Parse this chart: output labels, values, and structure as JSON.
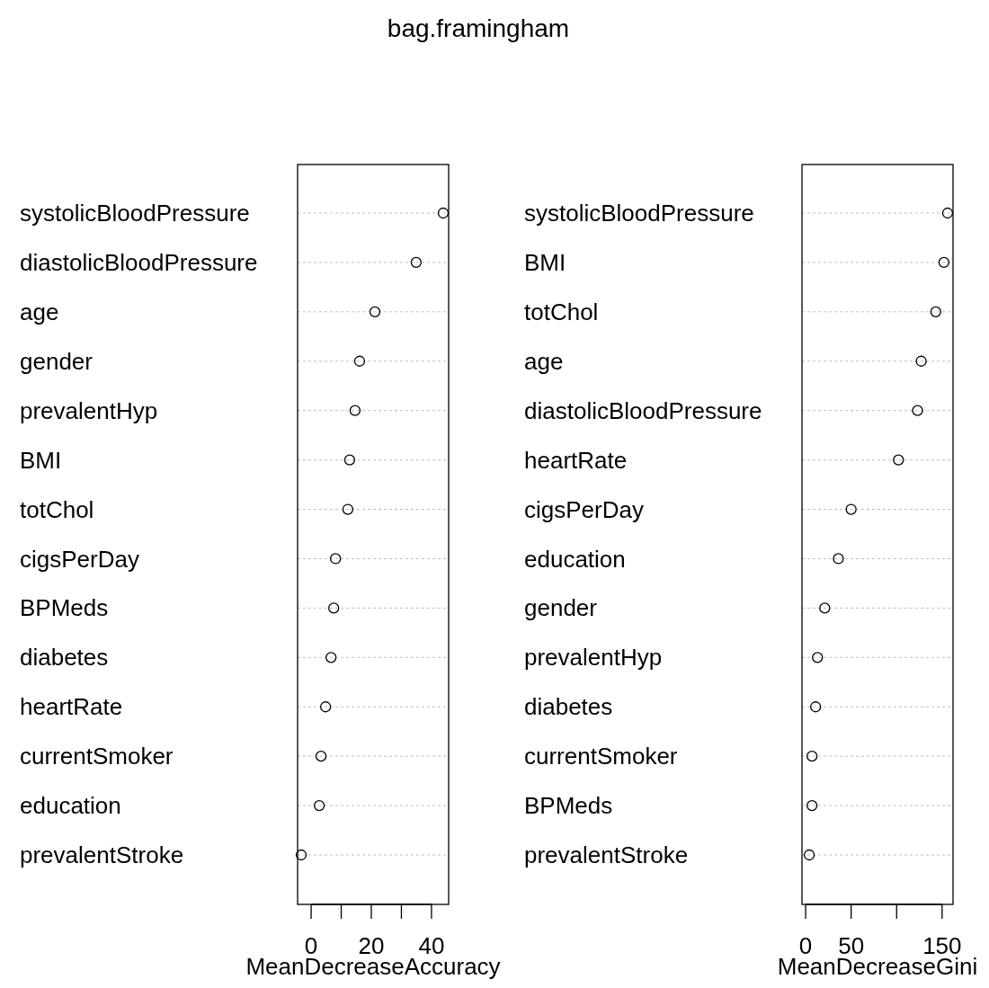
{
  "chart_data": [
    {
      "type": "scatter",
      "orientation": "horizontal",
      "title": "bag.framingham",
      "xlabel": "MeanDecreaseAccuracy",
      "categories": [
        "systolicBloodPressure",
        "diastolicBloodPressure",
        "age",
        "gender",
        "prevalentHyp",
        "BMI",
        "totChol",
        "cigsPerDay",
        "BPMeds",
        "diabetes",
        "heartRate",
        "currentSmoker",
        "education",
        "prevalentStroke"
      ],
      "series": [
        {
          "color": "#000000",
          "values": [
            43.9,
            34.9,
            21.2,
            16.1,
            14.6,
            12.8,
            12.2,
            8.1,
            7.5,
            6.6,
            4.8,
            3.3,
            2.7,
            -3.3
          ]
        }
      ],
      "xlim": [
        -4.5,
        45.7
      ],
      "xticks": [
        0,
        {
          "value": 10,
          "label": null
        },
        20,
        {
          "value": 30,
          "label": null
        },
        40
      ],
      "grid": "y",
      "marker": "circle"
    },
    {
      "type": "scatter",
      "orientation": "horizontal",
      "xlabel": "MeanDecreaseGini",
      "categories": [
        "systolicBloodPressure",
        "BMI",
        "totChol",
        "age",
        "diastolicBloodPressure",
        "heartRate",
        "cigsPerDay",
        "education",
        "gender",
        "prevalentHyp",
        "diabetes",
        "currentSmoker",
        "BPMeds",
        "prevalentStroke"
      ],
      "series": [
        {
          "color": "#000000",
          "values": [
            156,
            152,
            143,
            127,
            123,
            102,
            50,
            36,
            21,
            13,
            11,
            7,
            7,
            4
          ]
        }
      ],
      "xlim": [
        -4,
        162
      ],
      "xticks": [
        0,
        50,
        {
          "value": 100,
          "label": null
        },
        150
      ],
      "grid": "y",
      "marker": "circle"
    }
  ]
}
